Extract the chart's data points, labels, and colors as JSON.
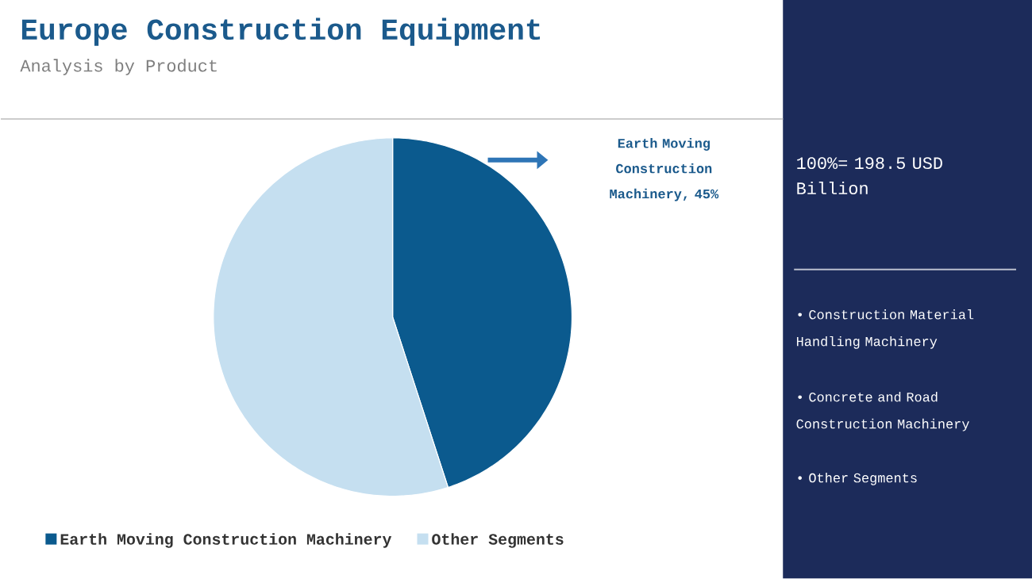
{
  "chart_data": {
    "type": "pie",
    "title": "Europe Construction Equipment",
    "subtitle": "Analysis by Product",
    "categories": [
      "Earth Moving Construction Machinery",
      "Other Segments"
    ],
    "values": [
      45,
      55
    ],
    "colors": [
      "#0b5a8e",
      "#c5dff0"
    ],
    "value_labels": [
      "Earth Moving Construction Machinery, 45%",
      null
    ],
    "legend": "bottom",
    "annotations": [
      "100%= 198.5 USD Billion",
      "• Construction Material Handling Machinery",
      "• Concrete and Road Construction Machinery",
      "• Other Segments"
    ]
  }
}
